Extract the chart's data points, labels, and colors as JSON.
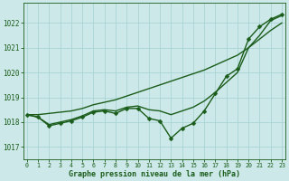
{
  "bg_color": "#cce8e8",
  "grid_color": "#aad4d4",
  "dark_green": "#1a5c1a",
  "xlabel": "Graphe pression niveau de la mer (hPa)",
  "ylim": [
    1016.5,
    1022.8
  ],
  "xlim": [
    -0.3,
    23.3
  ],
  "yticks": [
    1017,
    1018,
    1019,
    1020,
    1021,
    1022
  ],
  "xticks": [
    0,
    1,
    2,
    3,
    4,
    5,
    6,
    7,
    8,
    9,
    10,
    11,
    12,
    13,
    14,
    15,
    16,
    17,
    18,
    19,
    20,
    21,
    22,
    23
  ],
  "series_straight": [
    1018.3,
    1018.3,
    1018.35,
    1018.4,
    1018.45,
    1018.55,
    1018.7,
    1018.8,
    1018.9,
    1019.05,
    1019.2,
    1019.35,
    1019.5,
    1019.65,
    1019.8,
    1019.95,
    1020.1,
    1020.3,
    1020.5,
    1020.7,
    1021.0,
    1021.35,
    1021.7,
    1022.0
  ],
  "series_mid": [
    1018.3,
    1018.2,
    1017.9,
    1018.0,
    1018.1,
    1018.25,
    1018.45,
    1018.5,
    1018.45,
    1018.6,
    1018.65,
    1018.5,
    1018.45,
    1018.3,
    1018.45,
    1018.6,
    1018.85,
    1019.2,
    1019.6,
    1020.0,
    1021.0,
    1021.5,
    1022.1,
    1022.3
  ],
  "series_marker": [
    1018.3,
    1018.2,
    1017.85,
    1017.95,
    1018.05,
    1018.2,
    1018.4,
    1018.45,
    1018.35,
    1018.55,
    1018.55,
    1018.15,
    1018.05,
    1017.35,
    1017.75,
    1017.95,
    1018.45,
    1019.15,
    1019.85,
    1020.15,
    1021.35,
    1021.85,
    1022.15,
    1022.35
  ],
  "lw": 1.0,
  "marker_size": 2.5
}
